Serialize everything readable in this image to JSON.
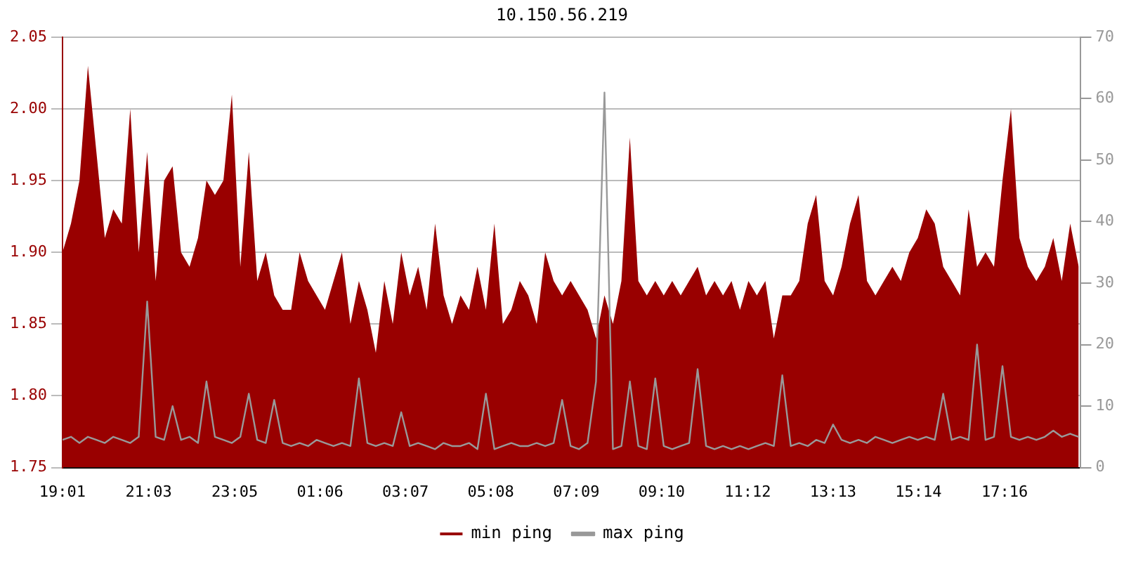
{
  "chart_data": {
    "type": "area",
    "title": "10.150.56.219",
    "x": [
      "--01-01T19:01",
      "--01-01T19:13",
      "--01-01T19:25",
      "--01-01T19:37",
      "--01-01T19:49",
      "--01-01T20:01",
      "--01-01T20:13",
      "--01-01T20:25",
      "--01-01T20:37",
      "--01-01T20:49",
      "--01-01T21:01",
      "--01-01T21:13",
      "--01-01T21:25",
      "--01-01T21:37",
      "--01-01T21:49",
      "--01-01T22:01",
      "--01-01T22:13",
      "--01-01T22:25",
      "--01-01T22:37",
      "--01-01T22:49",
      "--01-01T23:01",
      "--01-01T23:13",
      "--01-01T23:25",
      "--01-01T23:37",
      "--01-01T23:49",
      "--01-02T00:01",
      "--01-02T00:13",
      "--01-02T00:25",
      "--01-02T00:37",
      "--01-02T00:49",
      "--01-02T01:01",
      "--01-02T01:13",
      "--01-02T01:25",
      "--01-02T01:37",
      "--01-02T01:49",
      "--01-02T02:01",
      "--01-02T02:13",
      "--01-02T02:25",
      "--01-02T02:37",
      "--01-02T02:49",
      "--01-02T03:01",
      "--01-02T03:13",
      "--01-02T03:25",
      "--01-02T03:37",
      "--01-02T03:49",
      "--01-02T04:01",
      "--01-02T04:13",
      "--01-02T04:25",
      "--01-02T04:37",
      "--01-02T04:49",
      "--01-02T05:01",
      "--01-02T05:13",
      "--01-02T05:25",
      "--01-02T05:37",
      "--01-02T05:49",
      "--01-02T06:01",
      "--01-02T06:13",
      "--01-02T06:25",
      "--01-02T06:37",
      "--01-02T06:49",
      "--01-02T07:01",
      "--01-02T07:13",
      "--01-02T07:25",
      "--01-02T07:37",
      "--01-02T07:49",
      "--01-02T08:01",
      "--01-02T08:13",
      "--01-02T08:25",
      "--01-02T08:37",
      "--01-02T08:49",
      "--01-02T09:01",
      "--01-02T09:13",
      "--01-02T09:25",
      "--01-02T09:37",
      "--01-02T09:49",
      "--01-02T10:01",
      "--01-02T10:13",
      "--01-02T10:25",
      "--01-02T10:37",
      "--01-02T10:49",
      "--01-02T11:01",
      "--01-02T11:13",
      "--01-02T11:25",
      "--01-02T11:37",
      "--01-02T11:49",
      "--01-02T12:01",
      "--01-02T12:13",
      "--01-02T12:25",
      "--01-02T12:37",
      "--01-02T12:49",
      "--01-02T13:01",
      "--01-02T13:13",
      "--01-02T13:25",
      "--01-02T13:37",
      "--01-02T13:49",
      "--01-02T14:01",
      "--01-02T14:13",
      "--01-02T14:25",
      "--01-02T14:37",
      "--01-02T14:49",
      "--01-02T15:01",
      "--01-02T15:13",
      "--01-02T15:25",
      "--01-02T15:37",
      "--01-02T15:49",
      "--01-02T16:01",
      "--01-02T16:13",
      "--01-02T16:25",
      "--01-02T16:37",
      "--01-02T16:49",
      "--01-02T17:01",
      "--01-02T17:13",
      "--01-02T17:25",
      "--01-02T17:37",
      "--01-02T17:49",
      "--01-02T18:01",
      "--01-02T18:13",
      "--01-02T18:25",
      "--01-02T18:37",
      "--01-02T18:49",
      "--01-02T19:01"
    ],
    "series": [
      {
        "name": "min ping",
        "color": "#990000",
        "values": [
          1.9,
          1.92,
          1.95,
          2.03,
          1.97,
          1.91,
          1.93,
          1.92,
          2.0,
          1.9,
          1.97,
          1.88,
          1.95,
          1.96,
          1.9,
          1.89,
          1.91,
          1.95,
          1.94,
          1.95,
          2.01,
          1.89,
          1.97,
          1.88,
          1.9,
          1.87,
          1.86,
          1.86,
          1.9,
          1.88,
          1.87,
          1.86,
          1.88,
          1.9,
          1.85,
          1.88,
          1.86,
          1.83,
          1.88,
          1.85,
          1.9,
          1.87,
          1.89,
          1.86,
          1.92,
          1.87,
          1.85,
          1.87,
          1.86,
          1.89,
          1.86,
          1.92,
          1.85,
          1.86,
          1.88,
          1.87,
          1.85,
          1.9,
          1.88,
          1.87,
          1.88,
          1.87,
          1.86,
          1.84,
          1.87,
          1.85,
          1.88,
          1.98,
          1.88,
          1.87,
          1.88,
          1.87,
          1.88,
          1.87,
          1.88,
          1.89,
          1.87,
          1.88,
          1.87,
          1.88,
          1.86,
          1.88,
          1.87,
          1.88,
          1.84,
          1.87,
          1.87,
          1.88,
          1.92,
          1.94,
          1.88,
          1.87,
          1.89,
          1.92,
          1.94,
          1.88,
          1.87,
          1.88,
          1.89,
          1.88,
          1.9,
          1.91,
          1.93,
          1.92,
          1.89,
          1.88,
          1.87,
          1.93,
          1.89,
          1.9,
          1.89,
          1.95,
          2.0,
          1.91,
          1.89,
          1.88,
          1.89,
          1.91,
          1.88,
          1.92,
          1.89
        ]
      },
      {
        "name": "max ping",
        "type": "line",
        "axis": "y2",
        "color": "#999999",
        "values": [
          4.5,
          5,
          4,
          5,
          4.5,
          4,
          5,
          4.5,
          4,
          5,
          27,
          5,
          4.5,
          10,
          4.5,
          5,
          4,
          14,
          5,
          4.5,
          4,
          5,
          12,
          4.5,
          4,
          11,
          4,
          3.5,
          4,
          3.5,
          4.5,
          4,
          3.5,
          4,
          3.5,
          14.5,
          4,
          3.5,
          4,
          3.5,
          9,
          3.5,
          4,
          3.5,
          3,
          4,
          3.5,
          3.5,
          4,
          3,
          12,
          3,
          3.5,
          4,
          3.5,
          3.5,
          4,
          3.5,
          4,
          11,
          3.5,
          3,
          4,
          14,
          61,
          3,
          3.5,
          14,
          3.5,
          3,
          14.5,
          3.5,
          3,
          3.5,
          4,
          16,
          3.5,
          3,
          3.5,
          3,
          3.5,
          3,
          3.5,
          4,
          3.5,
          15,
          3.5,
          4,
          3.5,
          4.5,
          4,
          7,
          4.5,
          4,
          4.5,
          4,
          5,
          4.5,
          4,
          4.5,
          5,
          4.5,
          5,
          4.5,
          12,
          4.5,
          5,
          4.5,
          20,
          4.5,
          5,
          16.5,
          5,
          4.5,
          5,
          4.5,
          5,
          6,
          5,
          5.5,
          5
        ]
      }
    ],
    "xlim": [
      "--01-01T19:01",
      "--01-02T19:03"
    ],
    "xticks": [
      {
        "value": "--01-01T19:01",
        "label": "19:01"
      },
      {
        "value": "--01-01T21:03",
        "label": "21:03"
      },
      {
        "value": "--01-01T23:05",
        "label": "23:05"
      },
      {
        "value": "--01-02T01:06",
        "label": "01:06"
      },
      {
        "value": "--01-02T03:07",
        "label": "03:07"
      },
      {
        "value": "--01-02T05:08",
        "label": "05:08"
      },
      {
        "value": "--01-02T07:09",
        "label": "07:09"
      },
      {
        "value": "--01-02T09:10",
        "label": "09:10"
      },
      {
        "value": "--01-02T11:12",
        "label": "11:12"
      },
      {
        "value": "--01-02T13:13",
        "label": "13:13"
      },
      {
        "value": "--01-02T15:14",
        "label": "15:14"
      },
      {
        "value": "--01-02T17:16",
        "label": "17:16"
      }
    ],
    "ylim": [
      1.75,
      2.05
    ],
    "yticks": [
      {
        "value": 1.75,
        "label": "1.75"
      },
      {
        "value": 1.8,
        "label": "1.80"
      },
      {
        "value": 1.85,
        "label": "1.85"
      },
      {
        "value": 1.9,
        "label": "1.90"
      },
      {
        "value": 1.95,
        "label": "1.95"
      },
      {
        "value": 2.0,
        "label": "2.00"
      },
      {
        "value": 2.05,
        "label": "2.05"
      }
    ],
    "y2lim": [
      0,
      70
    ],
    "y2ticks": [
      0,
      10,
      20,
      30,
      40,
      50,
      60,
      70
    ],
    "grid": "y",
    "legend": "bottom"
  }
}
